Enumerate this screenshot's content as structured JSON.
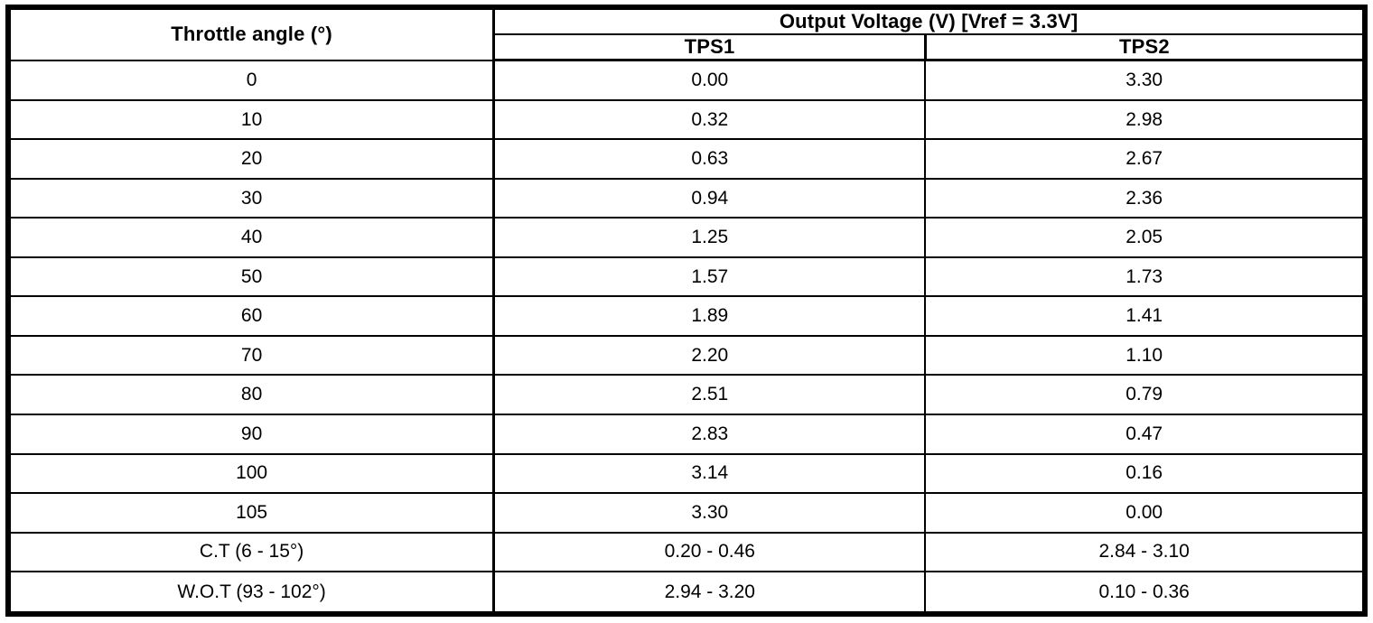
{
  "table": {
    "header": {
      "throttle_angle": "Throttle angle (°)",
      "output_voltage": "Output Voltage (V) [Vref = 3.3V]",
      "tps1": "TPS1",
      "tps2": "TPS2"
    },
    "rows": [
      {
        "angle": "0",
        "tps1": "0.00",
        "tps2": "3.30"
      },
      {
        "angle": "10",
        "tps1": "0.32",
        "tps2": "2.98"
      },
      {
        "angle": "20",
        "tps1": "0.63",
        "tps2": "2.67"
      },
      {
        "angle": "30",
        "tps1": "0.94",
        "tps2": "2.36"
      },
      {
        "angle": "40",
        "tps1": "1.25",
        "tps2": "2.05"
      },
      {
        "angle": "50",
        "tps1": "1.57",
        "tps2": "1.73"
      },
      {
        "angle": "60",
        "tps1": "1.89",
        "tps2": "1.41"
      },
      {
        "angle": "70",
        "tps1": "2.20",
        "tps2": "1.10"
      },
      {
        "angle": "80",
        "tps1": "2.51",
        "tps2": "0.79"
      },
      {
        "angle": "90",
        "tps1": "2.83",
        "tps2": "0.47"
      },
      {
        "angle": "100",
        "tps1": "3.14",
        "tps2": "0.16"
      },
      {
        "angle": "105",
        "tps1": "3.30",
        "tps2": "0.00"
      },
      {
        "angle": "C.T (6 - 15°)",
        "tps1": "0.20 - 0.46",
        "tps2": "2.84 - 3.10"
      },
      {
        "angle": "W.O.T (93 - 102°)",
        "tps1": "2.94 - 3.20",
        "tps2": "0.10 - 0.36"
      }
    ]
  },
  "chart_data": {
    "type": "table",
    "title": "Output Voltage (V) [Vref = 3.3V]",
    "columns": [
      "Throttle angle (°)",
      "TPS1",
      "TPS2"
    ],
    "x": [
      0,
      10,
      20,
      30,
      40,
      50,
      60,
      70,
      80,
      90,
      100,
      105
    ],
    "series": [
      {
        "name": "TPS1",
        "values": [
          0.0,
          0.32,
          0.63,
          0.94,
          1.25,
          1.57,
          1.89,
          2.2,
          2.51,
          2.83,
          3.14,
          3.3
        ]
      },
      {
        "name": "TPS2",
        "values": [
          3.3,
          2.98,
          2.67,
          2.36,
          2.05,
          1.73,
          1.41,
          1.1,
          0.79,
          0.47,
          0.16,
          0.0
        ]
      }
    ],
    "annotations": [
      {
        "label": "C.T (6 - 15°)",
        "tps1_range": "0.20 - 0.46",
        "tps2_range": "2.84 - 3.10"
      },
      {
        "label": "W.O.T (93 - 102°)",
        "tps1_range": "2.94 - 3.20",
        "tps2_range": "0.10 - 0.36"
      }
    ],
    "vref": "3.3V",
    "xlabel": "Throttle angle (°)",
    "ylabel": "Output Voltage (V)",
    "colors": {
      "border": "#000000",
      "text": "#000000",
      "background": "#ffffff"
    }
  }
}
